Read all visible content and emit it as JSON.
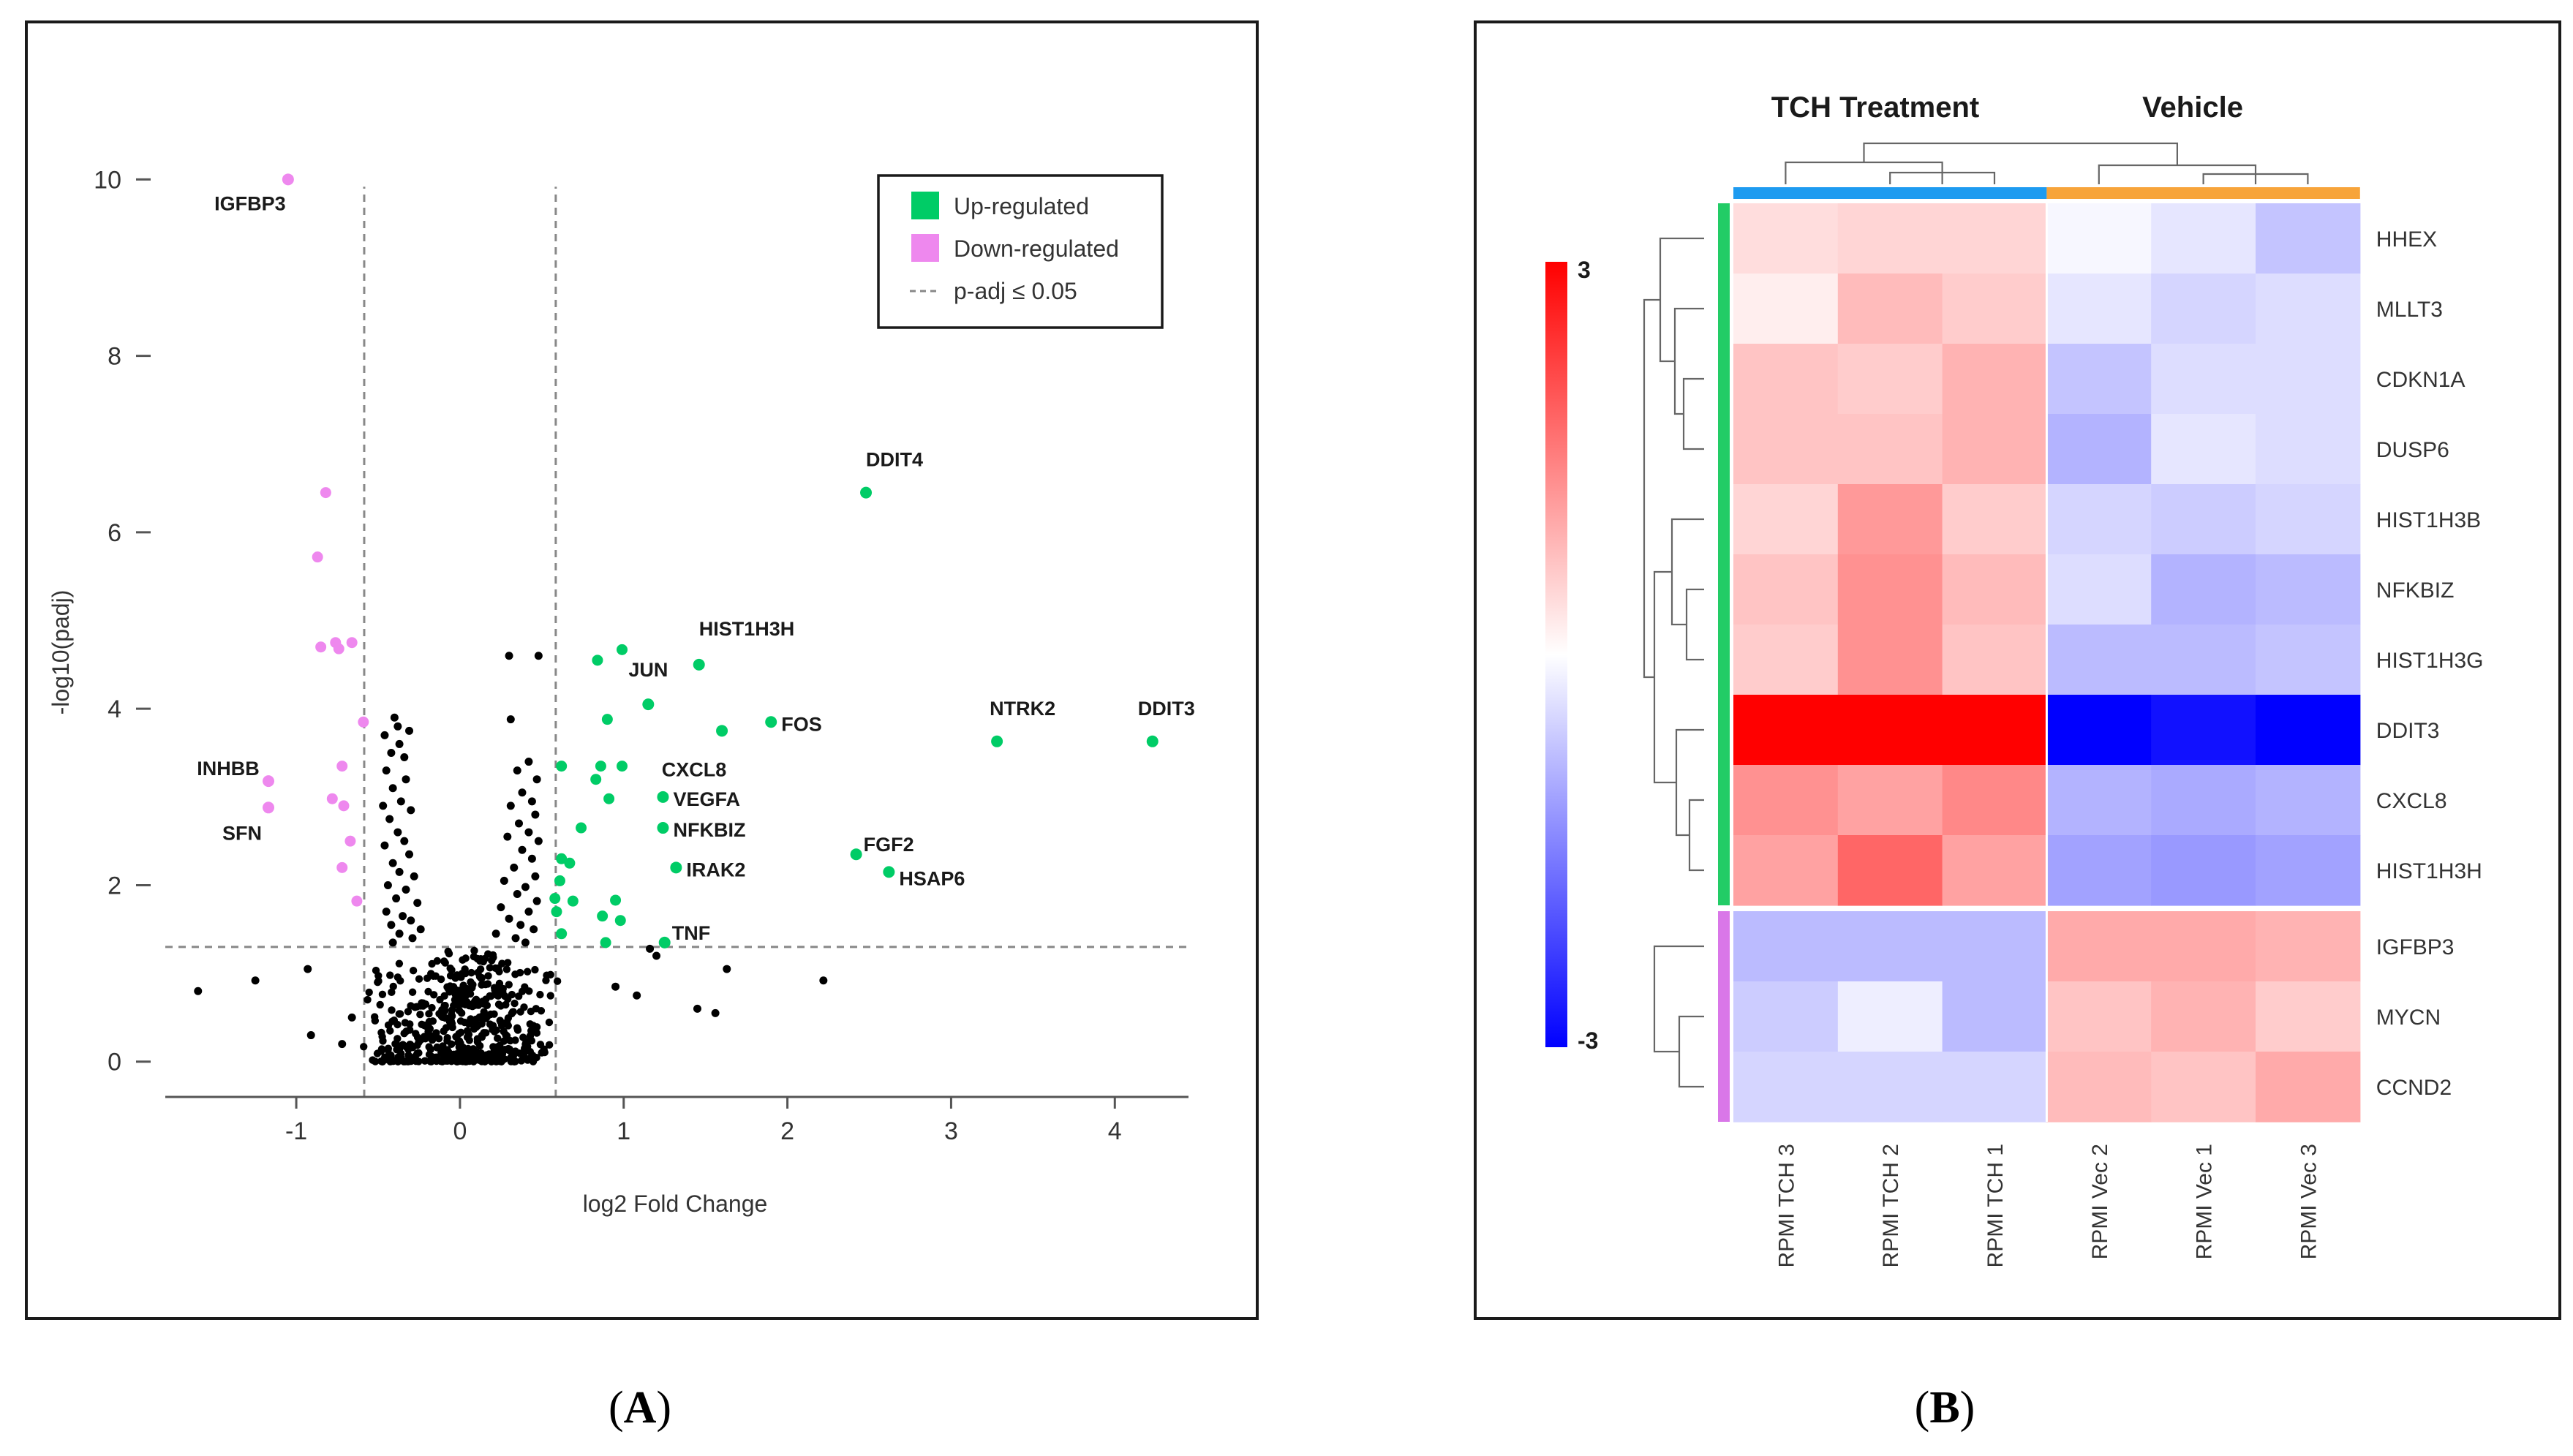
{
  "panels": {
    "a": {
      "caption": "(A)",
      "caption_prefix": "(",
      "caption_letter": "A",
      "caption_suffix": ")"
    },
    "b": {
      "caption": "(B)",
      "caption_prefix": "(",
      "caption_letter": "B",
      "caption_suffix": ")"
    }
  },
  "chart_data": [
    {
      "type": "scatter",
      "title": "",
      "xlabel": "log2 Fold Change",
      "ylabel": "-log10(padj)",
      "xlim": [
        -1.8,
        4.45
      ],
      "ylim": [
        -0.4,
        10.5
      ],
      "xticks": [
        -1,
        0,
        1,
        2,
        3,
        4
      ],
      "yticks": [
        0,
        2,
        4,
        6,
        8,
        10
      ],
      "thresholds": {
        "fold_change": [
          -0.585,
          0.585
        ],
        "padj_neglog10": 1.3
      },
      "legend": {
        "position": "top-right",
        "items": [
          {
            "label": "Up-regulated",
            "color": "#00cc66",
            "kind": "box"
          },
          {
            "label": "Down-regulated",
            "color": "#ee88ee",
            "kind": "box"
          },
          {
            "label": "p-adj ≤ 0.05",
            "color": "#888888",
            "kind": "dash"
          }
        ]
      },
      "colors": {
        "up": "#00cc66",
        "down": "#ee88ee",
        "ns": "#000000",
        "threshold": "#888888"
      },
      "labeled_points": [
        {
          "gene": "IGFBP3",
          "x": -1.05,
          "y": 10.0,
          "group": "down",
          "label_anchor": "below-left"
        },
        {
          "gene": "INHBB",
          "x": -1.17,
          "y": 3.18,
          "group": "down",
          "label_anchor": "above-left"
        },
        {
          "gene": "SFN",
          "x": -1.17,
          "y": 2.88,
          "group": "down",
          "label_anchor": "below-left"
        },
        {
          "gene": "DDIT4",
          "x": 2.48,
          "y": 6.45,
          "group": "up",
          "label_anchor": "above"
        },
        {
          "gene": "HIST1H3H",
          "x": 1.46,
          "y": 4.5,
          "group": "up",
          "label_anchor": "above-right"
        },
        {
          "gene": "JUN",
          "x": 1.15,
          "y": 4.05,
          "group": "up",
          "label_anchor": "above"
        },
        {
          "gene": "FOS",
          "x": 1.9,
          "y": 3.85,
          "group": "up",
          "label_anchor": "right"
        },
        {
          "gene": "CXCL8",
          "x": 1.6,
          "y": 3.75,
          "group": "up",
          "label_anchor": "below-left"
        },
        {
          "gene": "NTRK2",
          "x": 3.28,
          "y": 3.63,
          "group": "up",
          "label_anchor": "above"
        },
        {
          "gene": "DDIT3",
          "x": 4.23,
          "y": 3.63,
          "group": "up",
          "label_anchor": "above"
        },
        {
          "gene": "VEGFA",
          "x": 1.24,
          "y": 3.0,
          "group": "up",
          "label_anchor": "right"
        },
        {
          "gene": "NFKBIZ",
          "x": 1.24,
          "y": 2.65,
          "group": "up",
          "label_anchor": "right"
        },
        {
          "gene": "FGF2",
          "x": 2.42,
          "y": 2.35,
          "group": "up",
          "label_anchor": "above-right"
        },
        {
          "gene": "HSAP6",
          "x": 2.62,
          "y": 2.15,
          "group": "up",
          "label_anchor": "right"
        },
        {
          "gene": "IRAK2",
          "x": 1.32,
          "y": 2.2,
          "group": "up",
          "label_anchor": "right"
        },
        {
          "gene": "TNF",
          "x": 1.25,
          "y": 1.35,
          "group": "up",
          "label_anchor": "above-right"
        }
      ],
      "other_points": {
        "down": [
          [
            -0.82,
            6.45
          ],
          [
            -0.87,
            5.72
          ],
          [
            -0.85,
            4.7
          ],
          [
            -0.76,
            4.75
          ],
          [
            -0.74,
            4.68
          ],
          [
            -0.66,
            4.75
          ],
          [
            -0.59,
            3.85
          ],
          [
            -0.72,
            3.35
          ],
          [
            -0.78,
            2.98
          ],
          [
            -0.71,
            2.9
          ],
          [
            -0.67,
            2.5
          ],
          [
            -0.72,
            2.2
          ],
          [
            -0.63,
            1.82
          ]
        ],
        "up": [
          [
            0.84,
            4.55
          ],
          [
            0.99,
            4.67
          ],
          [
            0.9,
            3.88
          ],
          [
            0.62,
            3.35
          ],
          [
            0.86,
            3.35
          ],
          [
            0.99,
            3.35
          ],
          [
            0.83,
            3.2
          ],
          [
            0.91,
            2.98
          ],
          [
            0.74,
            2.65
          ],
          [
            0.62,
            2.3
          ],
          [
            0.67,
            2.25
          ],
          [
            0.61,
            2.05
          ],
          [
            0.58,
            1.85
          ],
          [
            0.69,
            1.82
          ],
          [
            0.95,
            1.83
          ],
          [
            0.59,
            1.7
          ],
          [
            0.87,
            1.65
          ],
          [
            0.98,
            1.6
          ],
          [
            0.62,
            1.45
          ],
          [
            0.89,
            1.35
          ]
        ],
        "ns": [
          [
            0.3,
            4.6
          ],
          [
            0.48,
            4.6
          ],
          [
            0.31,
            3.88
          ],
          [
            -0.4,
            3.9
          ],
          [
            -0.38,
            3.8
          ],
          [
            -0.46,
            3.7
          ],
          [
            -0.31,
            3.75
          ],
          [
            -0.37,
            3.6
          ],
          [
            -0.42,
            3.5
          ],
          [
            -0.34,
            3.45
          ],
          [
            -0.45,
            3.3
          ],
          [
            -0.33,
            3.2
          ],
          [
            -0.41,
            3.1
          ],
          [
            -0.36,
            2.95
          ],
          [
            -0.47,
            2.9
          ],
          [
            -0.3,
            2.85
          ],
          [
            -0.43,
            2.75
          ],
          [
            -0.38,
            2.6
          ],
          [
            -0.34,
            2.5
          ],
          [
            -0.46,
            2.45
          ],
          [
            -0.31,
            2.35
          ],
          [
            -0.41,
            2.25
          ],
          [
            -0.37,
            2.15
          ],
          [
            -0.28,
            2.1
          ],
          [
            -0.44,
            2.0
          ],
          [
            -0.33,
            1.95
          ],
          [
            -0.39,
            1.85
          ],
          [
            -0.26,
            1.8
          ],
          [
            -0.45,
            1.7
          ],
          [
            -0.35,
            1.65
          ],
          [
            -0.3,
            1.6
          ],
          [
            -0.42,
            1.55
          ],
          [
            -0.24,
            1.5
          ],
          [
            -0.37,
            1.45
          ],
          [
            -0.29,
            1.4
          ],
          [
            -0.41,
            1.35
          ],
          [
            0.42,
            3.4
          ],
          [
            0.35,
            3.3
          ],
          [
            0.47,
            3.2
          ],
          [
            0.38,
            3.05
          ],
          [
            0.44,
            2.95
          ],
          [
            0.31,
            2.9
          ],
          [
            0.46,
            2.8
          ],
          [
            0.36,
            2.7
          ],
          [
            0.42,
            2.6
          ],
          [
            0.29,
            2.55
          ],
          [
            0.48,
            2.5
          ],
          [
            0.38,
            2.4
          ],
          [
            0.44,
            2.3
          ],
          [
            0.33,
            2.2
          ],
          [
            0.46,
            2.1
          ],
          [
            0.27,
            2.05
          ],
          [
            0.4,
            1.98
          ],
          [
            0.35,
            1.9
          ],
          [
            0.47,
            1.82
          ],
          [
            0.25,
            1.75
          ],
          [
            0.42,
            1.7
          ],
          [
            0.3,
            1.62
          ],
          [
            0.37,
            1.55
          ],
          [
            0.45,
            1.5
          ],
          [
            0.22,
            1.45
          ],
          [
            0.34,
            1.4
          ],
          [
            0.4,
            1.35
          ],
          [
            -1.6,
            0.8
          ],
          [
            -1.25,
            0.92
          ],
          [
            -0.93,
            1.05
          ],
          [
            -0.91,
            0.3
          ],
          [
            -0.66,
            0.5
          ],
          [
            -0.72,
            0.2
          ],
          [
            1.16,
            1.28
          ],
          [
            1.2,
            1.2
          ],
          [
            1.26,
            1.35
          ],
          [
            1.45,
            0.6
          ],
          [
            1.56,
            0.55
          ],
          [
            1.63,
            1.05
          ],
          [
            2.22,
            0.92
          ],
          [
            0.95,
            0.85
          ],
          [
            1.08,
            0.75
          ]
        ],
        "ns_cloud": {
          "count": 520,
          "x_range": [
            -0.62,
            0.65
          ],
          "y_range": [
            0,
            1.3
          ]
        }
      }
    },
    {
      "type": "heatmap",
      "title": "",
      "group_labels": [
        "TCH Treatment",
        "Vehicle"
      ],
      "columns": [
        "RPMI TCH 3",
        "RPMI TCH 2",
        "RPMI TCH 1",
        "RPMI Vec 2",
        "RPMI Vec 1",
        "RPMI Vec 3"
      ],
      "column_groups": [
        0,
        0,
        0,
        1,
        1,
        1
      ],
      "rows": [
        "HHEX",
        "MLLT3",
        "CDKN1A",
        "DUSP6",
        "HIST1H3B",
        "NFKBIZ",
        "HIST1H3G",
        "DDIT3",
        "CXCL8",
        "HIST1H3H",
        "IGFBP3",
        "MYCN",
        "CCND2"
      ],
      "row_groups": [
        0,
        0,
        0,
        0,
        0,
        0,
        0,
        0,
        0,
        0,
        1,
        1,
        1
      ],
      "values": [
        [
          0.4,
          0.5,
          0.5,
          -0.1,
          -0.3,
          -0.7
        ],
        [
          0.2,
          0.8,
          0.6,
          -0.3,
          -0.5,
          -0.4
        ],
        [
          0.7,
          0.6,
          0.9,
          -0.7,
          -0.4,
          -0.4
        ],
        [
          0.7,
          0.7,
          0.9,
          -0.9,
          -0.3,
          -0.4
        ],
        [
          0.5,
          1.2,
          0.6,
          -0.5,
          -0.6,
          -0.5
        ],
        [
          0.7,
          1.3,
          0.8,
          -0.4,
          -0.9,
          -0.8
        ],
        [
          0.6,
          1.3,
          0.7,
          -0.8,
          -0.8,
          -0.7
        ],
        [
          3.0,
          3.0,
          3.0,
          -3.0,
          -2.8,
          -3.0
        ],
        [
          1.3,
          1.1,
          1.4,
          -0.9,
          -1.0,
          -0.9
        ],
        [
          1.1,
          1.8,
          1.1,
          -1.1,
          -1.2,
          -1.1
        ],
        [
          -0.8,
          -0.8,
          -0.8,
          1.0,
          1.0,
          0.9
        ],
        [
          -0.6,
          -0.2,
          -0.8,
          0.7,
          0.9,
          0.6
        ],
        [
          -0.5,
          -0.5,
          -0.5,
          0.8,
          0.7,
          1.0
        ]
      ],
      "scale": {
        "min": -3,
        "max": 3,
        "min_label": "-3",
        "max_label": "3"
      },
      "colors": {
        "low": "#0000ff",
        "mid": "#ffffff",
        "high": "#ff0000",
        "group_treatment": "#1e9bf0",
        "group_vehicle": "#f7a43a",
        "row_up": "#22cc66",
        "row_down": "#d977e8"
      }
    }
  ]
}
